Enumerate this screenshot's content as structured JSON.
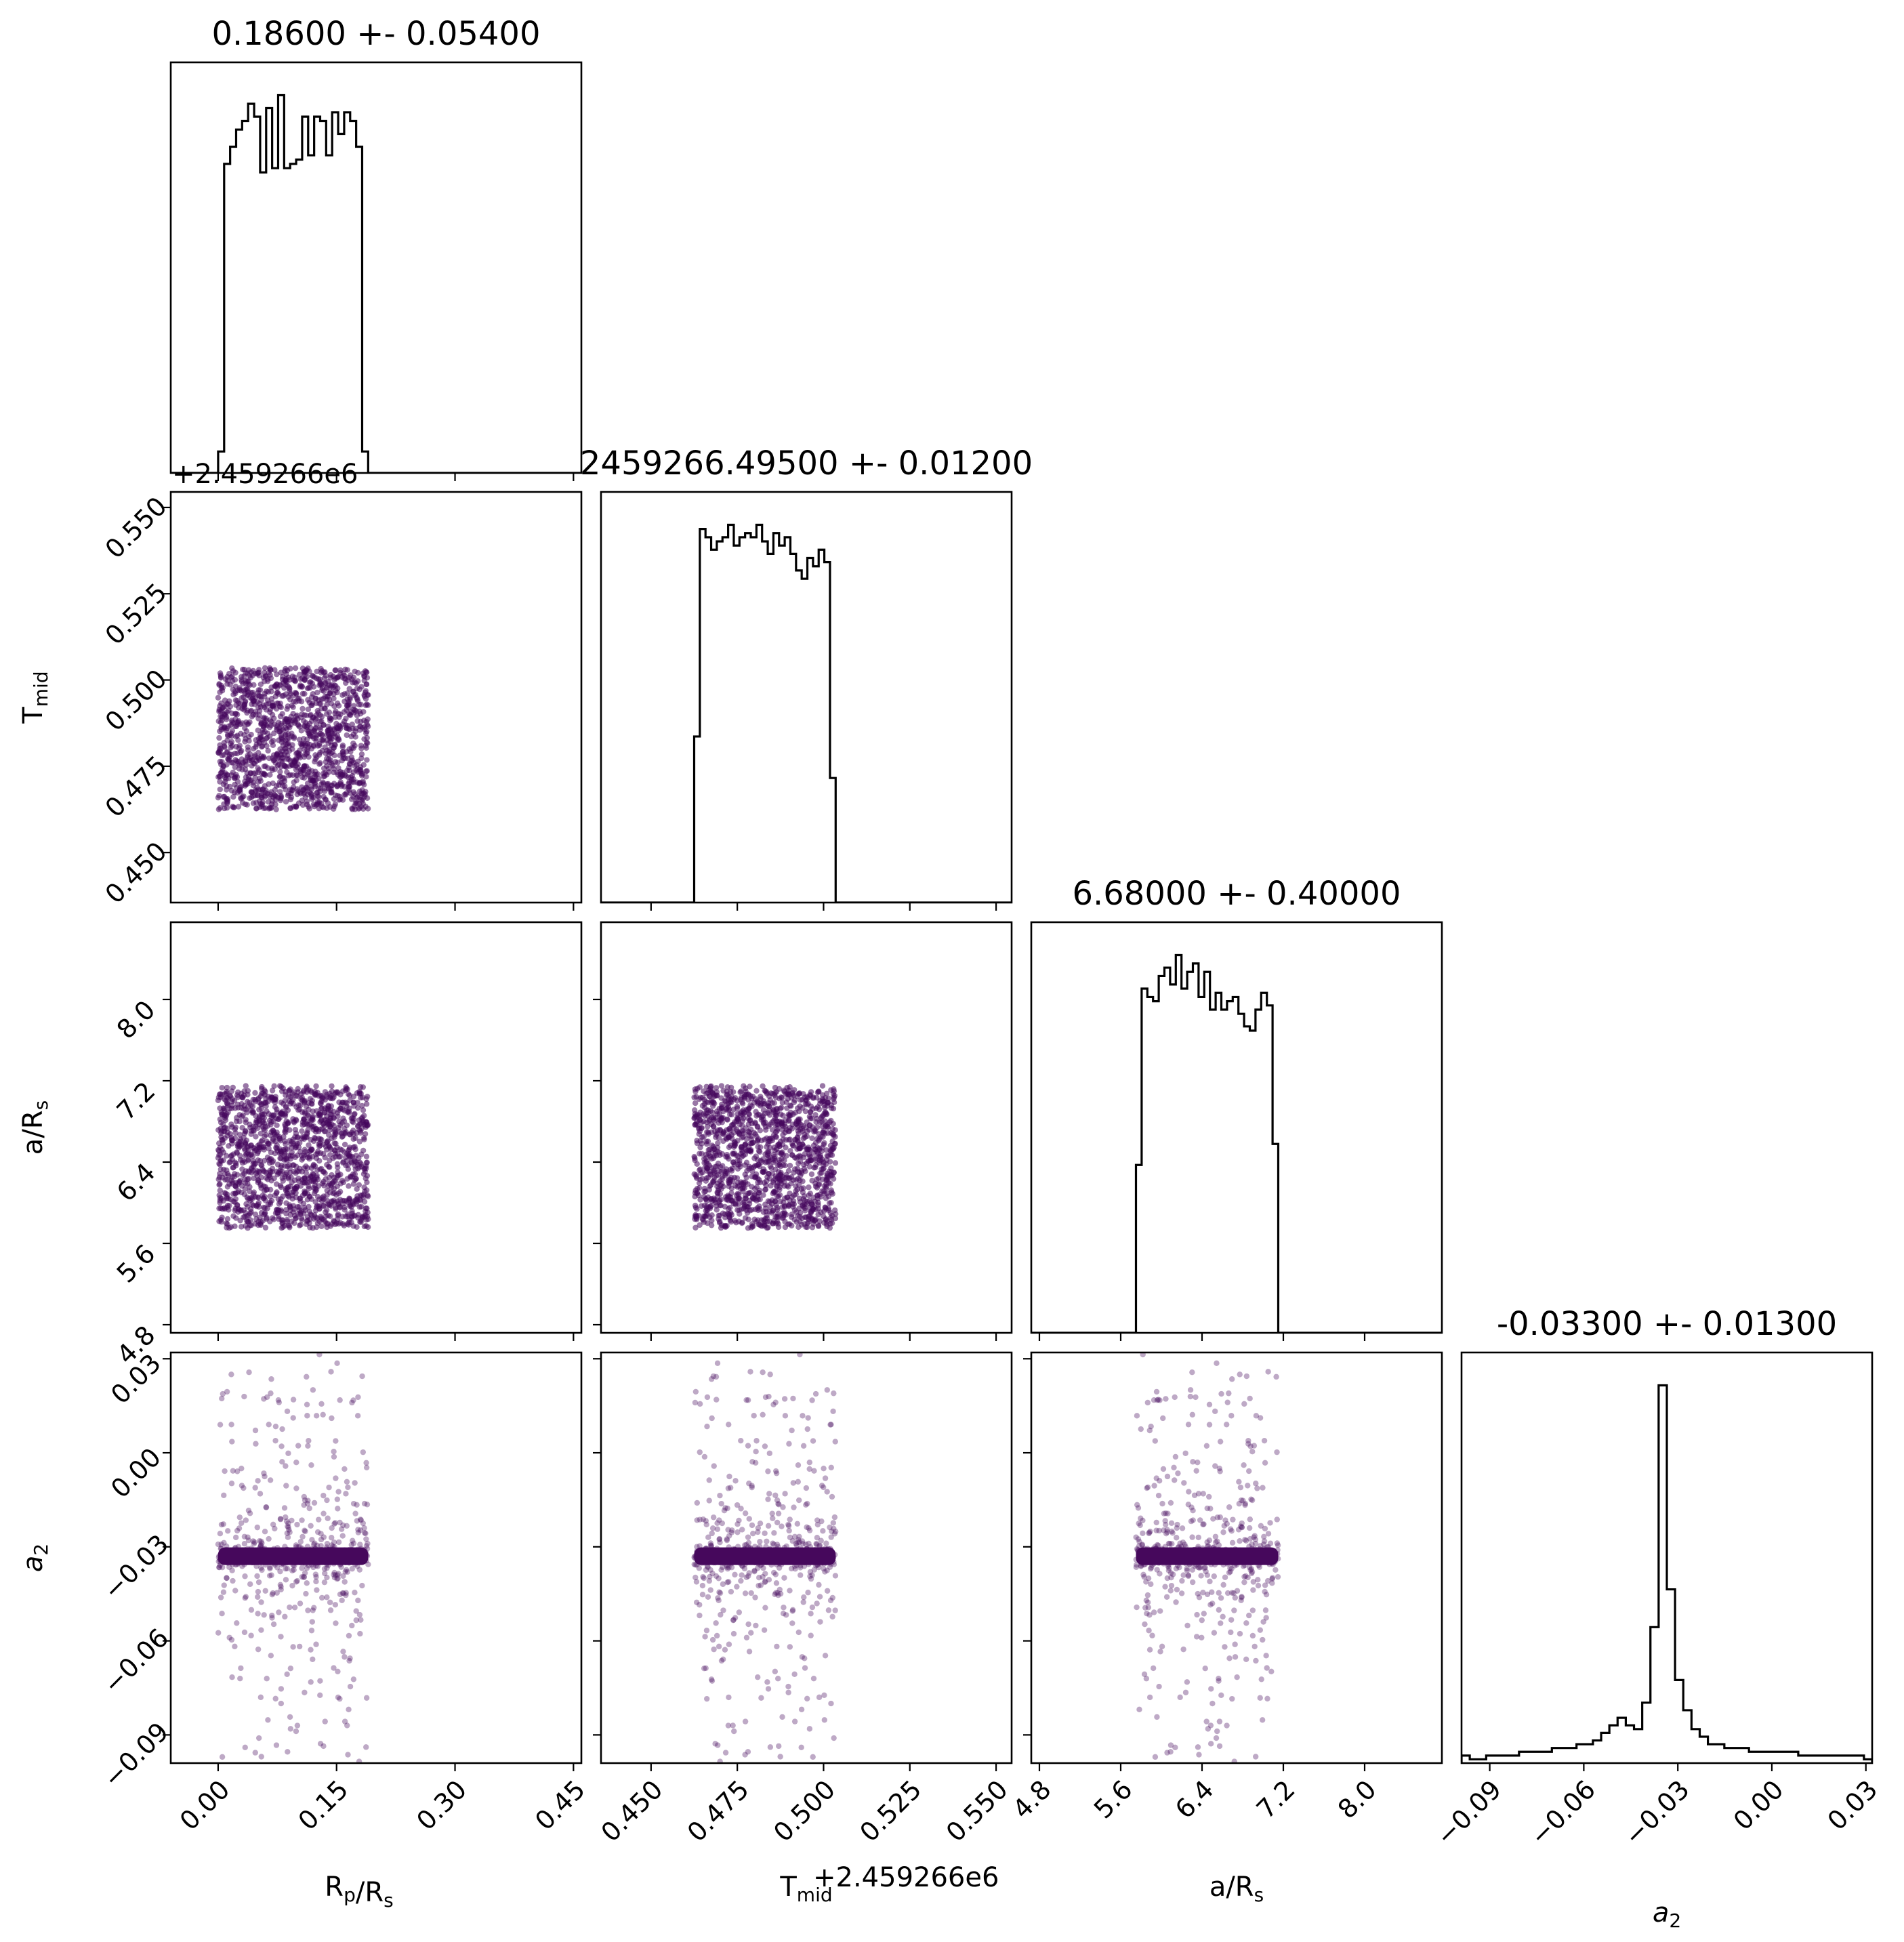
{
  "chart_data": {
    "type": "scatter",
    "kind": "corner",
    "parameters": [
      {
        "key": "rp",
        "label": "R_p/R_s",
        "label_main": "R",
        "label_sub1": "p",
        "label_mid": "/R",
        "label_sub2": "s",
        "title": "0.18600 +- 0.05400",
        "range": [
          -0.06,
          0.46
        ],
        "ticks": [
          0.0,
          0.15,
          0.3,
          0.45
        ],
        "tick_labels": [
          "0.00",
          "0.15",
          "0.30",
          "0.45"
        ],
        "sample_range": [
          0.0,
          0.19
        ],
        "offset_text": ""
      },
      {
        "key": "tmid",
        "label": "T_mid",
        "label_main": "T",
        "label_sub1": "mid",
        "label_mid": "",
        "label_sub2": "",
        "title": "2459266.49500 +- 0.01200",
        "range": [
          0.4355,
          0.5545
        ],
        "ticks": [
          0.45,
          0.475,
          0.5,
          0.525,
          0.55
        ],
        "tick_labels": [
          "0.450",
          "0.475",
          "0.500",
          "0.525",
          "0.550"
        ],
        "sample_range": [
          0.4625,
          0.5035
        ],
        "offset_text": "+2.459266e6"
      },
      {
        "key": "ars",
        "label": "a/R_s",
        "label_main": "a/R",
        "label_sub1": "",
        "label_mid": "",
        "label_sub2": "s",
        "title": "6.68000 +- 0.40000",
        "range": [
          4.72,
          8.76
        ],
        "ticks": [
          4.8,
          5.6,
          6.4,
          7.2,
          8.0
        ],
        "tick_labels": [
          "4.8",
          "5.6",
          "6.4",
          "7.2",
          "8.0"
        ],
        "sample_range": [
          5.75,
          7.15
        ],
        "offset_text": ""
      },
      {
        "key": "a2",
        "label": "a_2",
        "label_main": "a",
        "label_sub1": "",
        "label_mid": "",
        "label_sub2": "2",
        "title": "-0.03300 +- 0.01300",
        "range": [
          -0.099,
          0.032
        ],
        "ticks": [
          -0.09,
          -0.06,
          -0.03,
          0.0,
          0.03
        ],
        "tick_labels": [
          "−0.09",
          "−0.06",
          "−0.03",
          "0.00",
          "0.03"
        ],
        "sample_range": [
          -0.099,
          0.032
        ],
        "offset_text": ""
      }
    ],
    "histograms": [
      {
        "param": "rp",
        "bins": 25,
        "counts": [
          0.05,
          0.72,
          0.76,
          0.8,
          0.82,
          0.86,
          0.83,
          0.7,
          0.85,
          0.71,
          0.88,
          0.71,
          0.72,
          0.73,
          0.83,
          0.74,
          0.83,
          0.82,
          0.74,
          0.84,
          0.79,
          0.84,
          0.82,
          0.76,
          0.05
        ]
      },
      {
        "param": "tmid",
        "bins": 25,
        "counts": [
          0.4,
          0.9,
          0.88,
          0.85,
          0.87,
          0.88,
          0.91,
          0.86,
          0.88,
          0.89,
          0.88,
          0.91,
          0.87,
          0.84,
          0.89,
          0.86,
          0.88,
          0.84,
          0.8,
          0.78,
          0.83,
          0.81,
          0.85,
          0.82,
          0.3
        ]
      },
      {
        "param": "ars",
        "bins": 25,
        "counts": [
          0.4,
          0.82,
          0.8,
          0.79,
          0.85,
          0.87,
          0.83,
          0.9,
          0.82,
          0.86,
          0.88,
          0.8,
          0.86,
          0.77,
          0.81,
          0.77,
          0.79,
          0.8,
          0.76,
          0.73,
          0.72,
          0.77,
          0.81,
          0.78,
          0.45
        ]
      },
      {
        "param": "a2",
        "bins": 50,
        "counts": [
          0.02,
          0.01,
          0.01,
          0.02,
          0.02,
          0.02,
          0.02,
          0.03,
          0.03,
          0.03,
          0.03,
          0.04,
          0.04,
          0.04,
          0.05,
          0.05,
          0.06,
          0.08,
          0.1,
          0.12,
          0.1,
          0.09,
          0.16,
          0.36,
          1.0,
          0.46,
          0.22,
          0.14,
          0.09,
          0.07,
          0.05,
          0.05,
          0.04,
          0.04,
          0.04,
          0.03,
          0.03,
          0.03,
          0.03,
          0.03,
          0.03,
          0.02,
          0.02,
          0.02,
          0.02,
          0.02,
          0.02,
          0.02,
          0.02,
          0.01
        ]
      }
    ],
    "scatter_style": {
      "color": "#46085c",
      "dense_band_a2": -0.033,
      "uniform_points": 1400,
      "a2_points": 700
    },
    "grid": false,
    "legend": "none"
  }
}
